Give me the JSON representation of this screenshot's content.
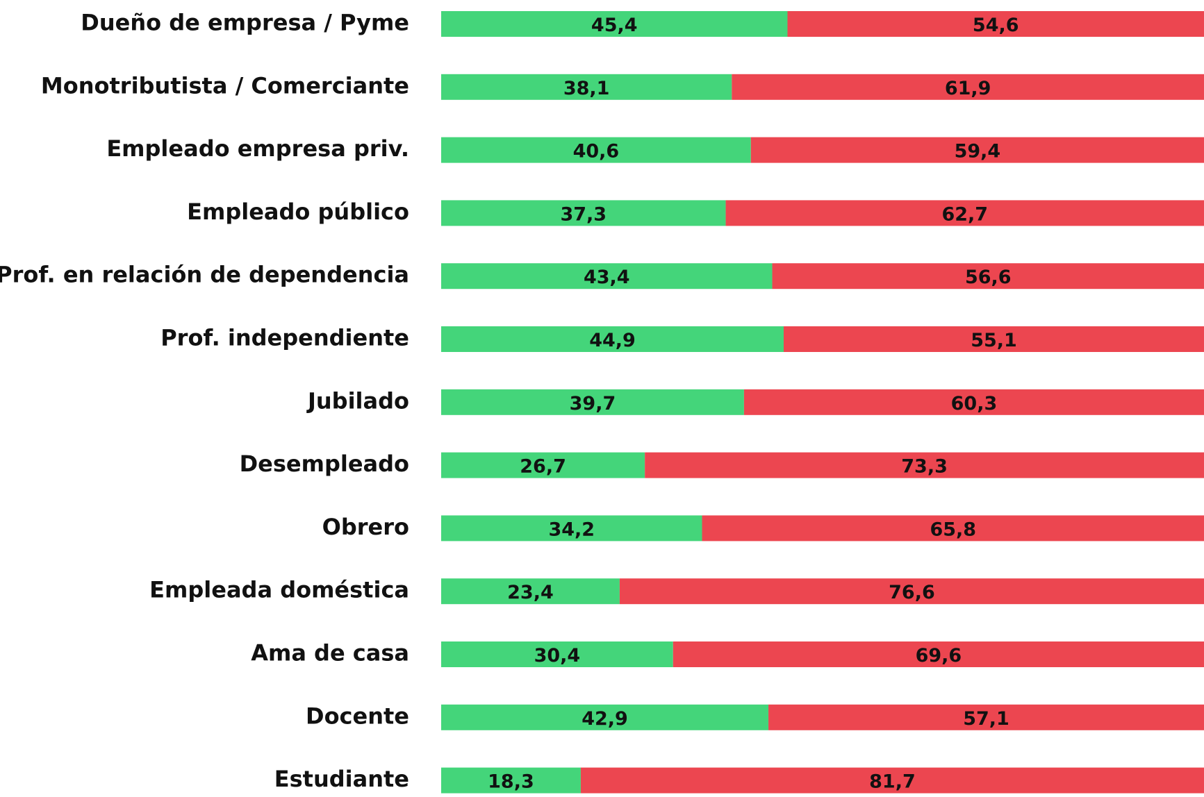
{
  "chart_data": {
    "type": "stacked-bar-horizontal",
    "categories": [
      "Dueño de empresa / Pyme",
      "Monotributista / Comerciante",
      "Empleado empresa priv.",
      "Empleado público",
      "Prof. en relación de dependencia",
      "Prof. independiente",
      "Jubilado",
      "Desempleado",
      "Obrero",
      "Empleada doméstica",
      "Ama de casa",
      "Docente",
      "Estudiante"
    ],
    "series": [
      {
        "color": "#44d57a",
        "values": [
          45.4,
          38.1,
          40.6,
          37.3,
          43.4,
          44.9,
          39.7,
          26.7,
          34.2,
          23.4,
          30.4,
          42.9,
          18.3
        ],
        "value_labels": [
          "45,4",
          "38,1",
          "40,6",
          "37,3",
          "43,4",
          "44,9",
          "39,7",
          "26,7",
          "34,2",
          "23,4",
          "30,4",
          "42,9",
          "18,3"
        ]
      },
      {
        "color": "#ec4650",
        "values": [
          54.6,
          61.9,
          59.4,
          62.7,
          56.6,
          55.1,
          60.3,
          73.3,
          65.8,
          76.6,
          69.6,
          57.1,
          81.7
        ],
        "value_labels": [
          "54,6",
          "61,9",
          "59,4",
          "62,7",
          "56,6",
          "55,1",
          "60,3",
          "73,3",
          "65,8",
          "76,6",
          "69,6",
          "57,1",
          "81,7"
        ]
      }
    ]
  }
}
